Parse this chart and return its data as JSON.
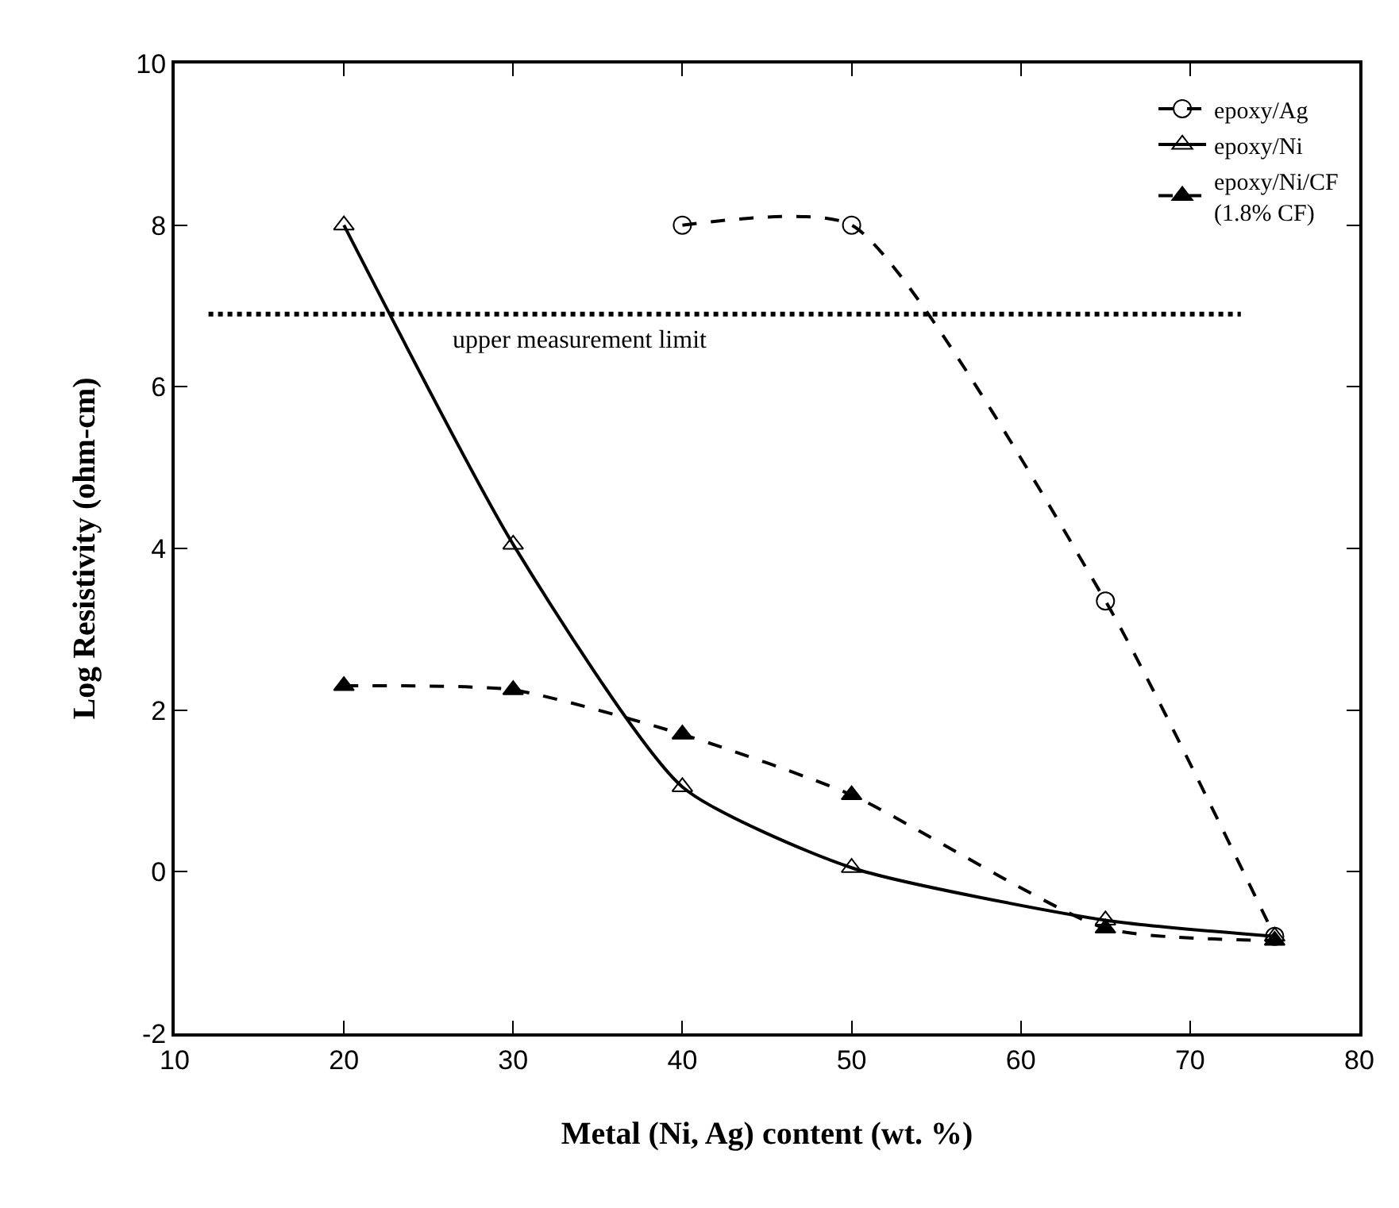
{
  "chart_data": {
    "type": "line",
    "xlabel": "Metal (Ni, Ag) content (wt. %)",
    "ylabel": "Log Resistivity (ohm-cm)",
    "xlim": [
      10,
      80
    ],
    "xticks": [
      10,
      20,
      30,
      40,
      50,
      60,
      70,
      80
    ],
    "ylim": [
      -2,
      10
    ],
    "yticks": [
      -2,
      0,
      2,
      4,
      6,
      8,
      10
    ],
    "legend": "top right",
    "series": [
      {
        "name": "epoxy/Ag",
        "color": "#000000",
        "marker": "circle",
        "line_style": "dashed",
        "x": [
          40,
          50,
          65,
          75
        ],
        "values": [
          8,
          8,
          3.35,
          -0.8
        ]
      },
      {
        "name": "epoxy/Ni",
        "color": "#000000",
        "marker": "triangle",
        "line_style": "solid",
        "x": [
          20,
          30,
          40,
          50,
          65,
          75
        ],
        "values": [
          8,
          4.05,
          1.05,
          0.05,
          -0.6,
          -0.8
        ]
      },
      {
        "name": "epoxy/Ni/CF\n(1.8% CF)",
        "color": "#000000",
        "marker": "triangle",
        "line_style": "dashed",
        "x": [
          20,
          30,
          40,
          50,
          65,
          75
        ],
        "values": [
          2.3,
          2.25,
          1.7,
          0.95,
          -0.7,
          -0.85
        ]
      },
      {
        "color": "#000000",
        "marker": "none",
        "line_style": "dotted",
        "x": [
          12,
          73
        ],
        "values": [
          6.9,
          6.9
        ]
      }
    ],
    "annotations": [
      {
        "text": "upper measurement limit",
        "x": 34,
        "y": 6.9
      }
    ]
  }
}
